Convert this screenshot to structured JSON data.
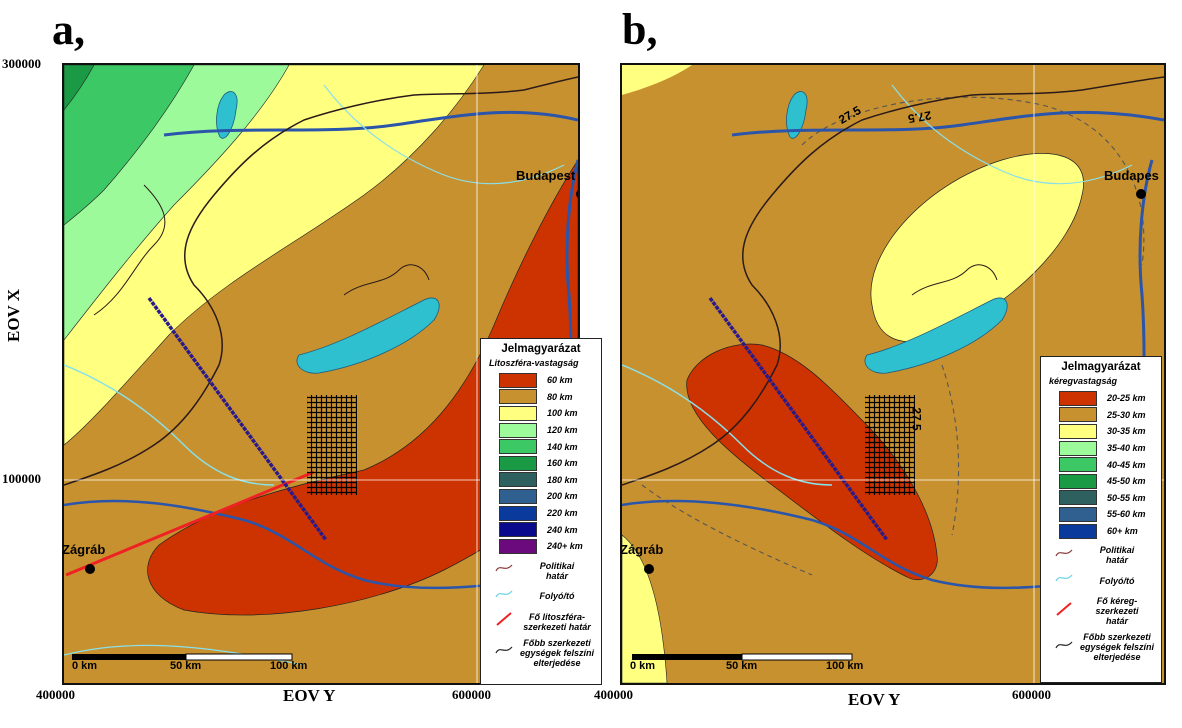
{
  "panels": {
    "a": {
      "letter": "a,",
      "legend": {
        "title": "Jelmagyarázat",
        "subtitle": "Litoszféra-vastagság",
        "classes": [
          {
            "label": "60 km",
            "color": "#cc3300"
          },
          {
            "label": "80 km",
            "color": "#c8912f"
          },
          {
            "label": "100 km",
            "color": "#ffff80"
          },
          {
            "label": "120 km",
            "color": "#9dfa9b"
          },
          {
            "label": "140 km",
            "color": "#3cc864"
          },
          {
            "label": "160 km",
            "color": "#1a9a45"
          },
          {
            "label": "180 km",
            "color": "#2f6060"
          },
          {
            "label": "200 km",
            "color": "#2f6090"
          },
          {
            "label": "220 km",
            "color": "#0a3a9c"
          },
          {
            "label": "240 km",
            "color": "#0a0a8c"
          },
          {
            "label": "240+ km",
            "color": "#6a0a7c"
          }
        ],
        "symbols": [
          {
            "label1": "Politikai",
            "label2": "határ",
            "label3": ""
          },
          {
            "label1": "Folyó/tó",
            "label2": "",
            "label3": ""
          },
          {
            "label1": "Fő litoszféra-",
            "label2": "szerkezeti határ",
            "label3": ""
          },
          {
            "label1": "Főbb szerkezeti",
            "label2": "egységek felszíni",
            "label3": "elterjedése"
          }
        ]
      },
      "cities": {
        "budapest": "Budapest",
        "zagrab": "Zágráb"
      },
      "scale": {
        "s0": "0 km",
        "s50": "50 km",
        "s100": "100 km"
      },
      "axes": {
        "y_tick_top": "300000",
        "y_tick_bottom": "100000",
        "y_title": "EOV X",
        "x_tick_left": "400000",
        "x_tick_right": "600000",
        "x_title": "EOV Y"
      }
    },
    "b": {
      "letter": "b,",
      "legend": {
        "title": "Jelmagyarázat",
        "subtitle": "kéregvastagság",
        "classes": [
          {
            "label": "20-25 km",
            "color": "#cc3300"
          },
          {
            "label": "25-30 km",
            "color": "#c8912f"
          },
          {
            "label": "30-35 km",
            "color": "#ffff80"
          },
          {
            "label": "35-40 km",
            "color": "#9dfa9b"
          },
          {
            "label": "40-45 km",
            "color": "#3cc864"
          },
          {
            "label": "45-50 km",
            "color": "#1a9a45"
          },
          {
            "label": "50-55 km",
            "color": "#2f6060"
          },
          {
            "label": "55-60 km",
            "color": "#2f6090"
          },
          {
            "label": "60+ km",
            "color": "#0a3a9c"
          }
        ],
        "symbols": [
          {
            "label1": "Politikai",
            "label2": "határ",
            "label3": ""
          },
          {
            "label1": "Folyó/tó",
            "label2": "",
            "label3": ""
          },
          {
            "label1": "Fő kéreg-",
            "label2": "szerkezeti",
            "label3": "határ"
          },
          {
            "label1": "Főbb szerkezeti",
            "label2": "egységek felszíni",
            "label3": "elterjedése"
          }
        ]
      },
      "contour_labels": [
        "27.5",
        "27.5",
        "27.5"
      ],
      "cities": {
        "budapest": "Budapes",
        "zagrab": "Zágráb"
      },
      "scale": {
        "s0": "0 km",
        "s50": "50 km",
        "s100": "100 km"
      },
      "axes": {
        "x_tick_left": "400000",
        "x_tick_right": "600000",
        "x_title": "EOV Y"
      }
    }
  }
}
